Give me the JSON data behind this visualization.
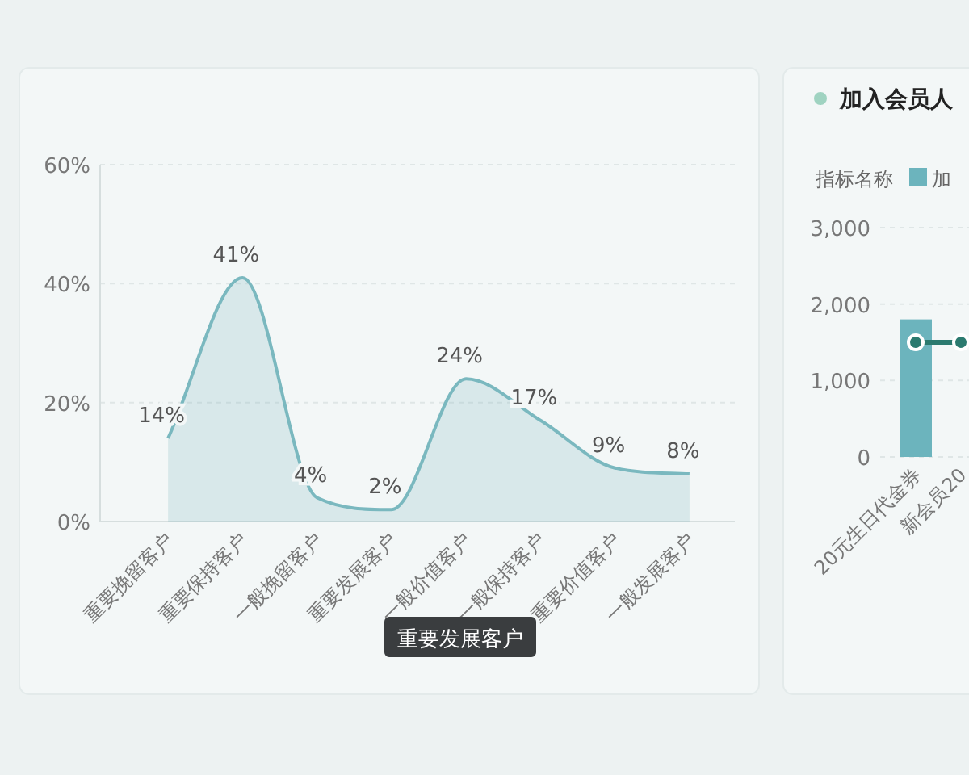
{
  "chart_data": [
    {
      "type": "area",
      "categories": [
        "重要挽留客户",
        "重要保持客户",
        "一般挽留客户",
        "重要发展客户",
        "一般价值客户",
        "一般保持客户",
        "重要价值客户",
        "一般发展客户"
      ],
      "values": [
        14,
        41,
        4,
        2,
        24,
        17,
        9,
        8
      ],
      "value_labels": [
        "14%",
        "41%",
        "4%",
        "2%",
        "24%",
        "17%",
        "9%",
        "8%"
      ],
      "color": "#7ab8bf",
      "ylim": [
        0,
        60
      ],
      "yticks": [
        {
          "value": 0,
          "label": "0%"
        },
        {
          "value": 20,
          "label": "20%"
        },
        {
          "value": 40,
          "label": "40%"
        },
        {
          "value": 60,
          "label": "60%"
        }
      ],
      "grid": "y",
      "annotations": [
        "重要发展客户"
      ]
    },
    {
      "type": "bar",
      "title": "加入会员人",
      "legend_title": "指标名称",
      "legend": "top left",
      "marker": "circle",
      "grid": "y",
      "categories": [
        "20元生日代金券",
        "新会员20"
      ],
      "series": [
        {
          "name": "加",
          "color": "#6cb4bd",
          "values": [
            1800,
            null
          ]
        },
        {
          "type": "line",
          "color": "#2b7a6f",
          "values": [
            1500,
            1500
          ]
        }
      ],
      "ylim": [
        0,
        3000
      ],
      "yticks": [
        {
          "value": 0,
          "label": "0"
        },
        {
          "value": 1000,
          "label": "1,000"
        },
        {
          "value": 2000,
          "label": "2,000"
        },
        {
          "value": 3000,
          "label": "3,000"
        }
      ]
    }
  ]
}
